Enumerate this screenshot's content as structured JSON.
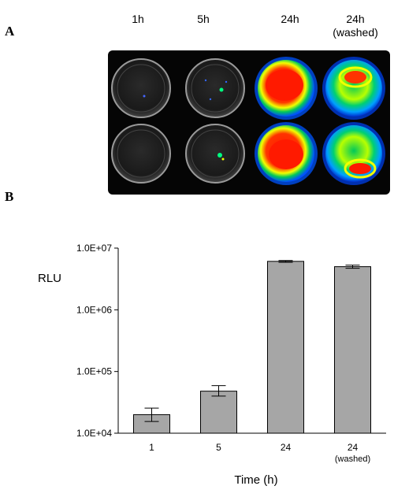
{
  "figure": {
    "panel_a_label": "A",
    "panel_b_label": "B",
    "image_columns": [
      {
        "label": "1h",
        "signal": "none"
      },
      {
        "label": "5h",
        "signal": "faint"
      },
      {
        "label": "24h",
        "signal": "strong"
      },
      {
        "label": "24h",
        "sublabel": "(washed)",
        "signal": "moderate"
      }
    ],
    "colors": {
      "plate_background": "#050505",
      "bar_fill": "#a6a6a6",
      "heat_high": "#ff1a00",
      "heat_mid": "#f2ff00",
      "heat_low": "#00c85a",
      "heat_edge": "#0050ff"
    }
  },
  "chart_data": {
    "type": "bar",
    "categories": [
      "1",
      "5",
      "24",
      "24"
    ],
    "category_sublabels": [
      "",
      "",
      "",
      "(washed)"
    ],
    "values": [
      20000,
      48000,
      6100000,
      5000000
    ],
    "error_low": [
      15500,
      40000,
      5900000,
      4700000
    ],
    "error_high": [
      25500,
      59000,
      6300000,
      5300000
    ],
    "xlabel": "Time (h)",
    "ylabel": "RLU",
    "yscale": "log",
    "ylim": [
      10000,
      10000000
    ],
    "yticks": [
      10000,
      100000,
      1000000,
      10000000
    ],
    "ytick_labels": [
      "1.0E+04",
      "1.0E+05",
      "1.0E+06",
      "1.0E+07"
    ],
    "grid": false,
    "legend": false
  }
}
